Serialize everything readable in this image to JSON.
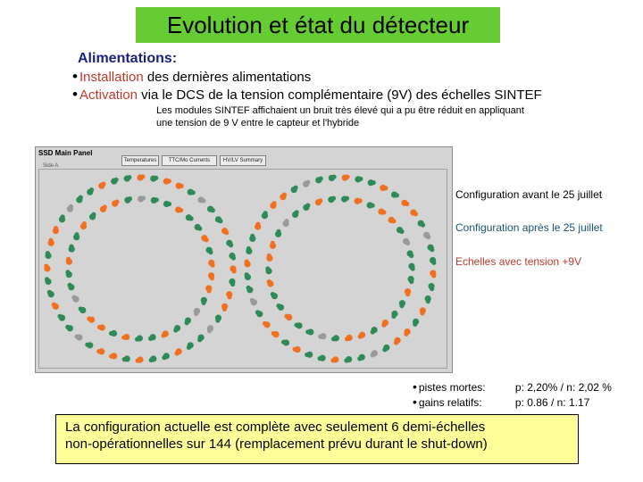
{
  "title": "Evolution et état du détecteur",
  "alimentations": {
    "heading": "Alimentations:",
    "bullet1_keyword": "Installation",
    "bullet1_rest": " des dernières alimentations",
    "bullet2_keyword": "Activation",
    "bullet2_rest": " via le DCS de la tension complémentaire (9V) des échelles SINTEF",
    "note_line1": "Les modules SINTEF  affichaient un bruit très élevé qui a pu être réduit en appliquant",
    "note_line2": "une tension de 9 V entre le capteur et l'hybride"
  },
  "panel": {
    "title": "SSD Main Panel",
    "subtitle": "Side A",
    "buttons": [
      "Temperatures",
      "TTC/Mo Currents",
      "HV/LV Summary"
    ]
  },
  "legend": [
    {
      "label": "Configuration avant le 25 juillet",
      "color": "#000000"
    },
    {
      "label": "Configuration après le 25 juillet",
      "color": "#1a5276"
    },
    {
      "label": "Echelles avec tension +9V",
      "color": "#c0392b"
    }
  ],
  "stats": [
    {
      "label": "pistes mortes:",
      "value": "p: 2,20%  / n: 2,02 %"
    },
    {
      "label": "gains relatifs:",
      "value": "p: 0.86   / n: 1.17"
    }
  ],
  "conclusion": {
    "line1": "La configuration actuelle est complète avec seulement 6 demi-échelles",
    "line2": "non-opérationnelles sur 144 (remplacement prévu durant le shut-down)"
  },
  "colors": {
    "title_bg": "#66cc33",
    "module_green": "#2e8b57",
    "module_orange": "#f07020",
    "module_gray": "#9a9a9a",
    "conclusion_bg": "#ffff99"
  }
}
